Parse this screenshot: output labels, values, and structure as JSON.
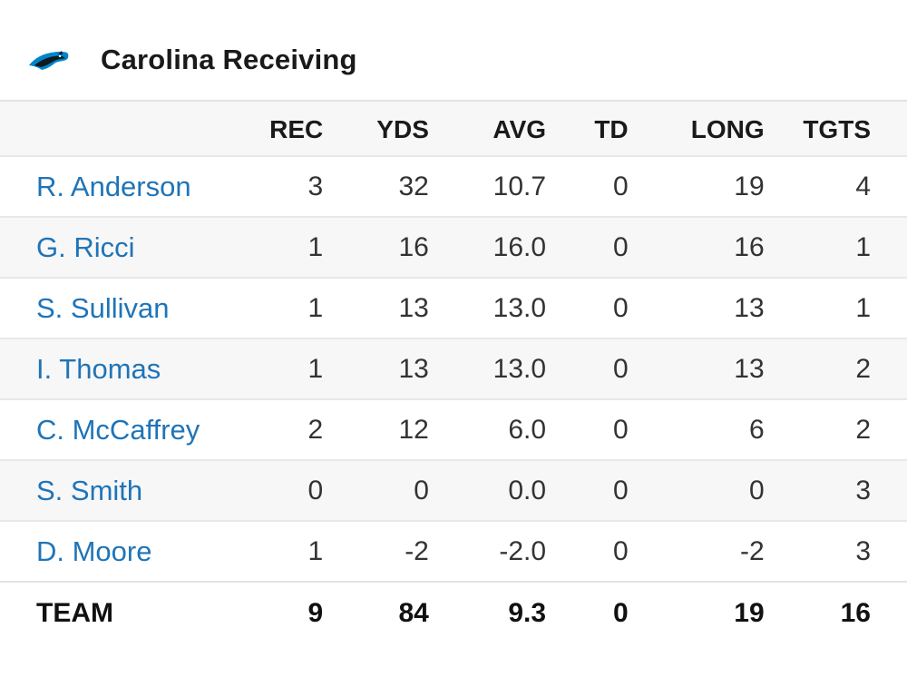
{
  "header": {
    "title": "Carolina Receiving",
    "logo_icon": "panthers-logo-icon"
  },
  "columns": [
    "REC",
    "YDS",
    "AVG",
    "TD",
    "LONG",
    "TGTS"
  ],
  "players": [
    {
      "name": "R. Anderson",
      "rec": "3",
      "yds": "32",
      "avg": "10.7",
      "td": "0",
      "long": "19",
      "tgts": "4"
    },
    {
      "name": "G. Ricci",
      "rec": "1",
      "yds": "16",
      "avg": "16.0",
      "td": "0",
      "long": "16",
      "tgts": "1"
    },
    {
      "name": "S. Sullivan",
      "rec": "1",
      "yds": "13",
      "avg": "13.0",
      "td": "0",
      "long": "13",
      "tgts": "1"
    },
    {
      "name": "I. Thomas",
      "rec": "1",
      "yds": "13",
      "avg": "13.0",
      "td": "0",
      "long": "13",
      "tgts": "2"
    },
    {
      "name": "C. McCaffrey",
      "rec": "2",
      "yds": "12",
      "avg": "6.0",
      "td": "0",
      "long": "6",
      "tgts": "2"
    },
    {
      "name": "S. Smith",
      "rec": "0",
      "yds": "0",
      "avg": "0.0",
      "td": "0",
      "long": "0",
      "tgts": "3"
    },
    {
      "name": "D. Moore",
      "rec": "1",
      "yds": "-2",
      "avg": "-2.0",
      "td": "0",
      "long": "-2",
      "tgts": "3"
    }
  ],
  "team": {
    "name": "TEAM",
    "rec": "9",
    "yds": "84",
    "avg": "9.3",
    "td": "0",
    "long": "19",
    "tgts": "16"
  },
  "colors": {
    "player_link": "#1f74b8",
    "row_alt": "#f7f7f7",
    "logo_blue": "#0085ca",
    "logo_black": "#101820"
  }
}
